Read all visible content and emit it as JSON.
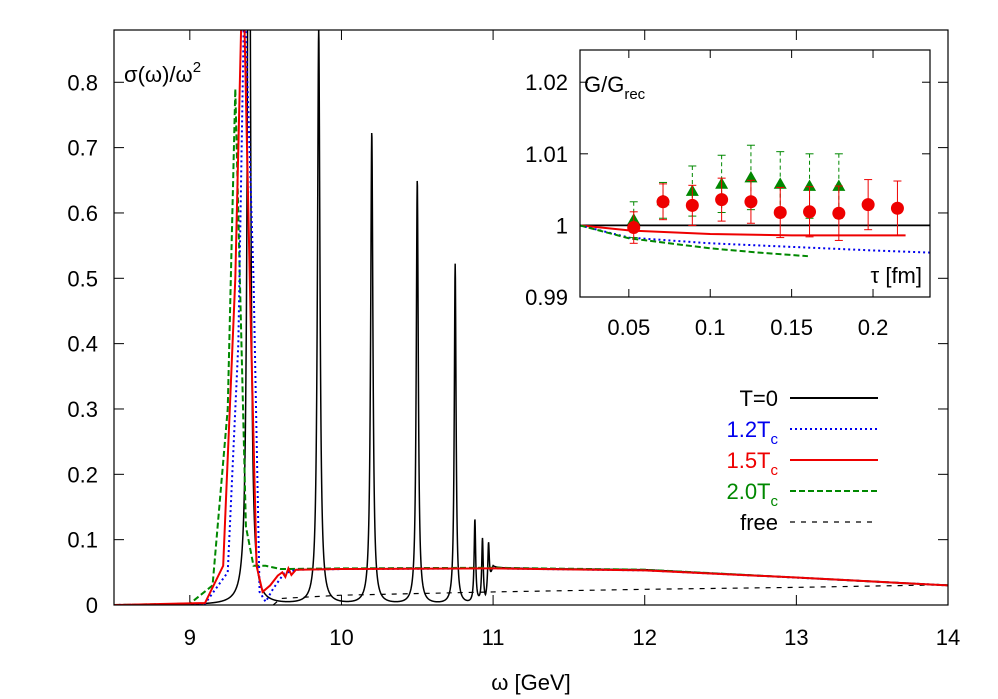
{
  "chart_data": [
    {
      "type": "line",
      "xlabel": "ω [GeV]",
      "ylabel_base": "σ(ω)/ω",
      "ylabel_sup": "2",
      "xlim": [
        8.5,
        14
      ],
      "ylim": [
        0,
        0.88
      ],
      "x_ticks": [
        9,
        10,
        11,
        12,
        13,
        14
      ],
      "y_ticks": [
        0,
        0.1,
        0.2,
        0.3,
        0.4,
        0.5,
        0.6,
        0.7,
        0.8
      ],
      "legend_position": "bottom-right",
      "series": [
        {
          "name": "T=0",
          "name_base": "T=0",
          "name_sub": "",
          "color": "#000000",
          "dash": "solid",
          "label_color": "#000000",
          "peaks": [
            [
              9.39,
              1.5,
              0.011
            ],
            [
              9.85,
              0.88,
              0.01
            ],
            [
              10.2,
              0.723,
              0.009
            ],
            [
              10.5,
              0.65,
              0.008
            ],
            [
              10.75,
              0.521,
              0.007
            ],
            [
              10.88,
              0.128,
              0.006
            ],
            [
              10.93,
              0.098,
              0.006
            ],
            [
              10.97,
              0.07,
              0.006
            ]
          ],
          "continuum": [
            [
              10.95,
              0
            ],
            [
              11.0,
              0.056
            ],
            [
              12.0,
              0.054
            ],
            [
              13.0,
              0.042
            ],
            [
              14.0,
              0.03
            ]
          ]
        },
        {
          "name": "1.2Tc",
          "name_base": "1.2T",
          "name_sub": "c",
          "color": "#0000ee",
          "dash": "dotted",
          "label_color": "#0000ee",
          "points": [
            [
              8.5,
              0
            ],
            [
              9.1,
              0.002
            ],
            [
              9.25,
              0.05
            ],
            [
              9.32,
              0.4
            ],
            [
              9.36,
              0.95
            ],
            [
              9.42,
              0.5
            ],
            [
              9.46,
              0.02
            ],
            [
              9.5,
              0.005
            ],
            [
              9.55,
              0.025
            ],
            [
              9.62,
              0.048
            ],
            [
              9.7,
              0.054
            ],
            [
              10.0,
              0.055
            ],
            [
              11.0,
              0.056
            ],
            [
              12.0,
              0.053
            ],
            [
              13.0,
              0.042
            ],
            [
              14.0,
              0.03
            ]
          ]
        },
        {
          "name": "1.5Tc",
          "name_base": "1.5T",
          "name_sub": "c",
          "color": "#ee0000",
          "dash": "solid",
          "label_color": "#ee0000",
          "points": [
            [
              8.5,
              0
            ],
            [
              9.1,
              0.003
            ],
            [
              9.22,
              0.06
            ],
            [
              9.3,
              0.5
            ],
            [
              9.35,
              1.0
            ],
            [
              9.4,
              0.45
            ],
            [
              9.44,
              0.06
            ],
            [
              9.48,
              0.02
            ],
            [
              9.53,
              0.03
            ],
            [
              9.58,
              0.045
            ],
            [
              9.61,
              0.05
            ],
            [
              9.63,
              0.043
            ],
            [
              9.65,
              0.056
            ],
            [
              9.67,
              0.046
            ],
            [
              9.7,
              0.054
            ],
            [
              10.0,
              0.055
            ],
            [
              11.0,
              0.056
            ],
            [
              12.0,
              0.053
            ],
            [
              13.0,
              0.042
            ],
            [
              14.0,
              0.03
            ]
          ]
        },
        {
          "name": "2.0Tc",
          "name_base": "2.0T",
          "name_sub": "c",
          "color": "#008800",
          "dash": "dashed",
          "label_color": "#008800",
          "points": [
            [
              8.5,
              0
            ],
            [
              9.0,
              0.002
            ],
            [
              9.15,
              0.03
            ],
            [
              9.25,
              0.3
            ],
            [
              9.3,
              0.79
            ],
            [
              9.33,
              0.5
            ],
            [
              9.37,
              0.12
            ],
            [
              9.42,
              0.06
            ],
            [
              9.5,
              0.06
            ],
            [
              9.6,
              0.055
            ],
            [
              10.0,
              0.056
            ],
            [
              11.0,
              0.057
            ],
            [
              12.0,
              0.054
            ],
            [
              13.0,
              0.042
            ],
            [
              14.0,
              0.03
            ]
          ]
        },
        {
          "name": "free",
          "name_base": "free",
          "name_sub": "",
          "color": "#000000",
          "dash": "thin-dashed",
          "label_color": "#000000",
          "points": [
            [
              9.55,
              0
            ],
            [
              9.6,
              0.01
            ],
            [
              10.0,
              0.015
            ],
            [
              11.0,
              0.02
            ],
            [
              12.0,
              0.024
            ],
            [
              13.0,
              0.027
            ],
            [
              14.0,
              0.031
            ]
          ]
        }
      ]
    },
    {
      "type": "scatter",
      "ylabel_base": "G/G",
      "ylabel_sub": "rec",
      "xlabel": "τ [fm]",
      "xlim": [
        0.02,
        0.235
      ],
      "ylim": [
        0.99,
        1.0245
      ],
      "x_ticks": [
        0.05,
        0.1,
        0.15,
        0.2
      ],
      "y_ticks": [
        0.99,
        1,
        1.01,
        1.02
      ],
      "reference_line": 1,
      "lines": [
        {
          "color": "#ee0000",
          "dash": "solid",
          "points": [
            [
              0.02,
              1.0
            ],
            [
              0.05,
              0.9993
            ],
            [
              0.1,
              0.9988
            ],
            [
              0.15,
              0.9986
            ],
            [
              0.22,
              0.9986
            ]
          ]
        },
        {
          "color": "#0000ee",
          "dash": "dotted",
          "points": [
            [
              0.02,
              1.0
            ],
            [
              0.05,
              0.9983
            ],
            [
              0.1,
              0.9975
            ],
            [
              0.15,
              0.997
            ],
            [
              0.2,
              0.9965
            ],
            [
              0.235,
              0.9962
            ]
          ]
        },
        {
          "color": "#008800",
          "dash": "dashed",
          "points": [
            [
              0.02,
              1.0
            ],
            [
              0.05,
              0.9982
            ],
            [
              0.1,
              0.9968
            ],
            [
              0.13,
              0.9962
            ],
            [
              0.16,
              0.9957
            ]
          ]
        }
      ],
      "points_series": [
        {
          "color": "#008800",
          "marker": "triangle",
          "points": [
            [
              0.053,
              1.0008,
              0.0025
            ],
            [
              0.071,
              1.0035,
              0.0025
            ],
            [
              0.089,
              1.0048,
              0.0035
            ],
            [
              0.107,
              1.0058,
              0.004
            ],
            [
              0.125,
              1.0067,
              0.0045
            ],
            [
              0.143,
              1.0058,
              0.0045
            ],
            [
              0.161,
              1.0055,
              0.0045
            ],
            [
              0.179,
              1.0055,
              0.0045
            ]
          ]
        },
        {
          "color": "#ee0000",
          "marker": "circle",
          "points": [
            [
              0.053,
              0.9997,
              0.0022
            ],
            [
              0.071,
              1.0033,
              0.0025
            ],
            [
              0.089,
              1.0028,
              0.0028
            ],
            [
              0.107,
              1.0036,
              0.003
            ],
            [
              0.125,
              1.0033,
              0.003
            ],
            [
              0.143,
              1.0018,
              0.0035
            ],
            [
              0.161,
              1.0019,
              0.0035
            ],
            [
              0.179,
              1.0017,
              0.0038
            ],
            [
              0.197,
              1.0029,
              0.0035
            ],
            [
              0.215,
              1.0024,
              0.0038
            ]
          ]
        }
      ]
    }
  ]
}
